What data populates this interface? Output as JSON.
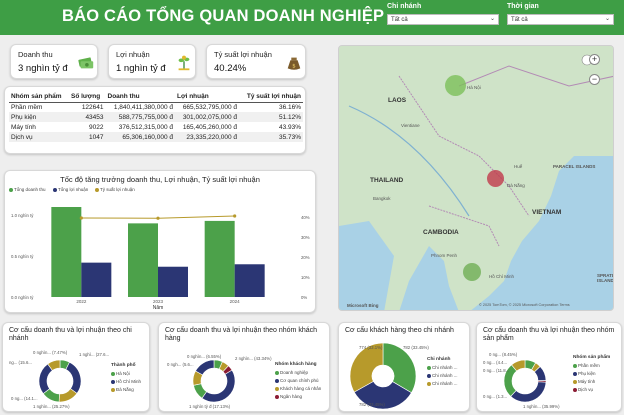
{
  "header": {
    "title": "BÁO CÁO TỔNG QUAN DOANH NGHIỆP",
    "filters": [
      {
        "label": "Chi nhánh",
        "value": "Tất cả"
      },
      {
        "label": "Thời gian",
        "value": "Tất cả"
      }
    ]
  },
  "kpis": [
    {
      "title": "Doanh thu",
      "value": "3 nghìn tỷ đ",
      "icon": "money-bills-icon"
    },
    {
      "title": "Lợi nhuận",
      "value": "1 nghìn tỷ đ",
      "icon": "money-plant-icon"
    },
    {
      "title": "Tỷ suất lợi nhuận",
      "value": "40.24%",
      "icon": "money-bag-icon"
    }
  ],
  "table": {
    "columns": [
      "Nhóm sản phẩm",
      "Số lượng",
      "Doanh thu",
      "Lợi nhuận",
      "Tỷ suất lợi nhuận"
    ],
    "rows": [
      [
        "Phần mềm",
        "122641",
        "1,840,411,380,000 đ",
        "665,532,795,000 đ",
        "36.16%"
      ],
      [
        "Phụ kiện",
        "43453",
        "588,775,755,000 đ",
        "301,002,075,000 đ",
        "51.12%"
      ],
      [
        "Máy tính",
        "9022",
        "376,512,315,000 đ",
        "165,405,260,000 đ",
        "43.93%"
      ],
      [
        "Dịch vụ",
        "1047",
        "65,306,160,000 đ",
        "23,335,220,000 đ",
        "35.73%"
      ]
    ]
  },
  "growth_chart": {
    "legend": [
      "Tổng doanh thu",
      "Tổng lợi nhuận",
      "Tỷ suất lợi nhuận"
    ],
    "colors": [
      "#4ca14a",
      "#2b3674",
      "#b79a2b"
    ],
    "y_left_ticks": [
      "1.0 nghìn tỷ",
      "0.5 nghìn tỷ",
      "0.0 nghìn tỷ"
    ],
    "y_right_ticks": [
      "40%",
      "30%",
      "20%",
      "10%",
      "0%"
    ],
    "xlabel": "Năm"
  },
  "chart_data": {
    "type": "bar",
    "title": "Tốc độ tăng trưởng doanh thu, Lợi nhuận, Tỷ suất lợi nhuận",
    "xlabel": "Năm",
    "categories": [
      "2022",
      "2023",
      "2024"
    ],
    "series": [
      {
        "name": "Tổng doanh thu",
        "type": "bar",
        "axis": "left",
        "values": [
          1.1,
          0.9,
          0.93
        ]
      },
      {
        "name": "Tổng lợi nhuận",
        "type": "bar",
        "axis": "left",
        "values": [
          0.42,
          0.37,
          0.4
        ]
      },
      {
        "name": "Tỷ suất lợi nhuận",
        "type": "line",
        "axis": "right",
        "values": [
          39.5,
          39.4,
          40.5
        ]
      }
    ],
    "ylim": [
      0,
      1.1
    ],
    "y2lim": [
      0,
      45
    ],
    "legend_position": "top-left"
  },
  "map": {
    "countries": [
      "LAOS",
      "THAILAND",
      "CAMBODIA",
      "VIETNAM"
    ],
    "islands": [
      "PARACEL ISLANDS",
      "SPRATLY ISLANDS"
    ],
    "cities": [
      "Hà Nội",
      "Vientiane",
      "Bangkok",
      "Phnom Penh",
      "Huế",
      "Đà Nẵng",
      "Hồ Chí Minh"
    ],
    "bubbles": [
      {
        "name": "Hà Nội",
        "color": "#7cbf5a"
      },
      {
        "name": "Đà Nẵng",
        "color": "#c0394b"
      },
      {
        "name": "Hồ Chí Minh",
        "color": "#6fae55"
      }
    ],
    "attribution": "© 2025 TomTom, © 2025 Microsoft Corporation  Terms",
    "logo": "Microsoft Bing"
  },
  "donuts": [
    {
      "title": "Cơ cấu doanh thu và lợi nhuận theo chi nhánh",
      "legend_title": "Thành phố",
      "legend": [
        "Hà Nội",
        "Hồ Chí Minh",
        "Đà Nẵng"
      ],
      "labels": [
        "0 nghìn... (7.47%)",
        "1 nghì... (27.6...",
        "ng... (15.6...",
        "0 ng... (14.1...",
        "1 nghìn... (25.27%)"
      ]
    },
    {
      "title": "Cơ cấu doanh thu và lợi nhuận theo nhóm khách hàng",
      "legend_title": "Nhóm khách hàng",
      "legend": [
        "Doanh nghiệp",
        "Cơ quan chính phủ",
        "Khách hàng cá nhân",
        "Ngân hàng"
      ],
      "labels": [
        "0 nghìn... (6.55%)",
        "0 ngh... (5.6...",
        "2 nghìn... (43.34%)",
        "1 nghìn tỷ đ (17.13%)"
      ]
    },
    {
      "title": "Cơ cấu khách hàng theo chi nhánh",
      "legend_title": "Chi nhánh",
      "legend": [
        "Chi nhánh ...",
        "Chi nhánh ...",
        "Chi nhánh ..."
      ],
      "labels": [
        "774 (33.1%)",
        "782 (33.45%)",
        "782 (33.45%)"
      ]
    },
    {
      "title": "Cơ cấu doanh thu và lợi nhuận theo nhóm sản phẩm",
      "legend_title": "Nhóm sản phẩm",
      "legend": [
        "Phần mềm",
        "Phụ kiện",
        "Máy tính",
        "Dịch vụ"
      ],
      "labels": [
        "0 ng... (8.45%)",
        "0 ng... (4.4...",
        "0 ng... (11.8...",
        "0 ng... (1.3...",
        "1 nghìn... (35.99%)"
      ]
    }
  ]
}
